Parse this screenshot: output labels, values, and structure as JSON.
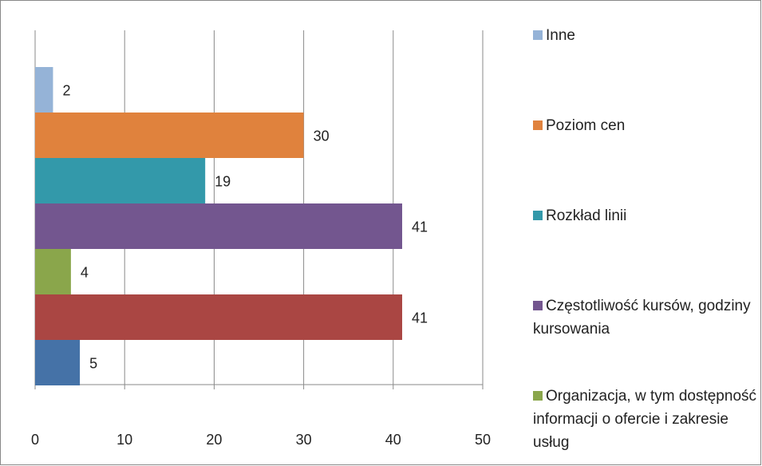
{
  "chart_data": {
    "type": "bar",
    "orientation": "horizontal",
    "series": [
      {
        "name": "Inne",
        "color": "#95b3d7",
        "values": [
          2
        ]
      },
      {
        "name": "Poziom cen",
        "color": "#e0823d",
        "values": [
          30
        ]
      },
      {
        "name": "Rozkład linii",
        "color": "#3399aa",
        "values": [
          19
        ]
      },
      {
        "name": "Częstotliwość kursów, godziny kursowania",
        "color": "#73568f",
        "values": [
          41
        ]
      },
      {
        "name": "Organizacja, w tym dostępność informacji o ofercie i zakresie usług",
        "color": "#8aa64b",
        "values": [
          4
        ]
      },
      {
        "color": "#aa4643",
        "values": [
          41
        ]
      },
      {
        "color": "#4572a7",
        "values": [
          5
        ]
      }
    ],
    "xlim": [
      0,
      50
    ],
    "xticks": [
      0,
      10,
      20,
      30,
      40,
      50
    ],
    "grid": true,
    "legend": "right"
  }
}
